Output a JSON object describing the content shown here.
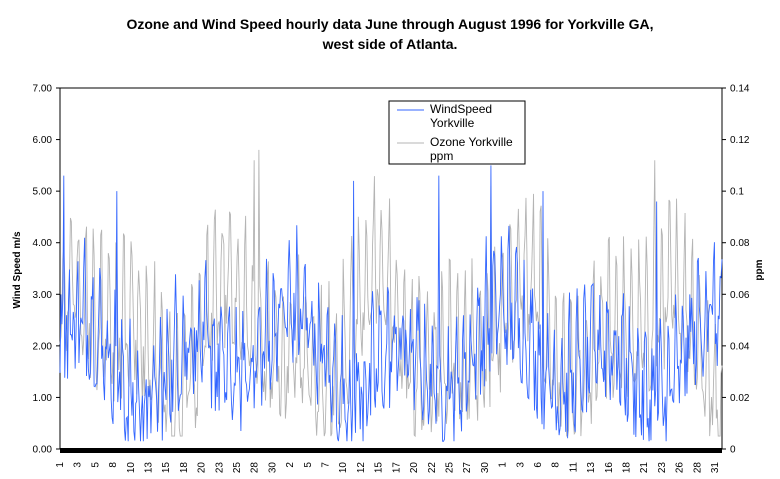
{
  "chart_data": {
    "type": "line",
    "title_line1": "Ozone and Wind Speed hourly data June through August 1996 for Yorkville GA,",
    "title_line2": "west side of Atlanta.",
    "ylabel_left": "Wind Speed m/s",
    "ylabel_right": "ppm",
    "ylim_left": [
      0,
      7
    ],
    "ylim_right": [
      0,
      0.14
    ],
    "left_ticks": [
      "0.00",
      "1.00",
      "2.00",
      "3.00",
      "4.00",
      "5.00",
      "6.00",
      "7.00"
    ],
    "right_ticks": [
      "0",
      "0.02",
      "0.04",
      "0.06",
      "0.08",
      "0.1",
      "0.12",
      "0.14"
    ],
    "x_tick_labels": [
      "1",
      "3",
      "5",
      "8",
      "10",
      "13",
      "15",
      "18",
      "20",
      "23",
      "25",
      "28",
      "30",
      "2",
      "5",
      "7",
      "10",
      "12",
      "15",
      "17",
      "20",
      "22",
      "25",
      "27",
      "30",
      "1",
      "3",
      "6",
      "8",
      "11",
      "13",
      "16",
      "18",
      "21",
      "23",
      "26",
      "28",
      "31"
    ],
    "x_period": "June 1 through August 31, 1996 (hourly)",
    "legend_position": "top-center",
    "grid": false,
    "series": [
      {
        "name": "WindSpeed Yorkville",
        "axis": "left",
        "color": "#3366ff",
        "approx_range": [
          0.1,
          5.5
        ],
        "typical_range": [
          1.0,
          3.5
        ],
        "notable_peaks": [
          {
            "x": "Jun 1",
            "y": 5.3
          },
          {
            "x": "Jun 9",
            "y": 5.0
          },
          {
            "x": "Jul 12",
            "y": 5.2
          },
          {
            "x": "Jul 20",
            "y": 5.3
          },
          {
            "x": "Jul 25",
            "y": 5.5
          },
          {
            "x": "Jul 30",
            "y": 5.0
          },
          {
            "x": "Aug 15",
            "y": 4.8
          }
        ]
      },
      {
        "name": "Ozone Yorkville ppm",
        "axis": "right",
        "color": "#b4b4b4",
        "approx_range": [
          0.005,
          0.116
        ],
        "typical_range": [
          0.02,
          0.08
        ],
        "notable_peaks": [
          {
            "x": "Jun 29",
            "y": 0.112
          },
          {
            "x": "Jun 30",
            "y": 0.116
          },
          {
            "x": "Aug 23",
            "y": 0.112
          },
          {
            "x": "Jul 25",
            "y": 0.102
          }
        ]
      }
    ]
  }
}
